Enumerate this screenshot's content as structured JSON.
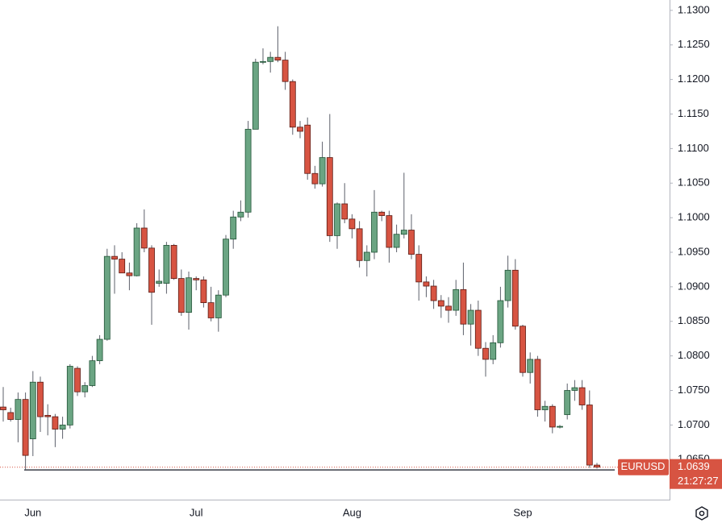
{
  "chart_data": {
    "type": "candlestick",
    "categories": [
      null,
      null,
      null,
      null,
      "Jun",
      null,
      null,
      null,
      null,
      null,
      null,
      null,
      null,
      null,
      null,
      null,
      null,
      null,
      null,
      null,
      null,
      null,
      null,
      null,
      null,
      null,
      "Jul",
      null,
      null,
      null,
      null,
      null,
      null,
      null,
      null,
      null,
      null,
      null,
      null,
      null,
      null,
      null,
      null,
      null,
      null,
      null,
      null,
      "Aug",
      null,
      null,
      null,
      null,
      null,
      null,
      null,
      null,
      null,
      null,
      null,
      null,
      null,
      null,
      null,
      null,
      null,
      null,
      null,
      null,
      null,
      null,
      "Sep",
      null,
      null,
      null,
      null,
      null,
      null,
      null,
      null,
      null,
      null
    ],
    "open": [
      1.0726,
      1.0718,
      1.0708,
      1.0737,
      1.068,
      1.0762,
      1.0714,
      1.0712,
      1.0694,
      1.07,
      1.0782,
      1.0748,
      1.0757,
      1.0793,
      1.0824,
      1.0944,
      1.094,
      1.092,
      1.0916,
      1.0985,
      1.0956,
      1.0905,
      1.0905,
      1.096,
      1.0912,
      1.0863,
      1.0912,
      1.091,
      1.0877,
      1.0855,
      1.0888,
      1.0969,
      1.1001,
      1.1008,
      1.1128,
      1.1225,
      1.1226,
      1.1232,
      1.1228,
      1.1197,
      1.1131,
      1.1134,
      1.1064,
      1.1049,
      1.1087,
      1.0974,
      1.102,
      1.0998,
      1.0984,
      1.0938,
      1.095,
      1.1008,
      1.1003,
      1.0957,
      1.0976,
      1.0982,
      1.0947,
      1.0907,
      1.0901,
      1.088,
      1.0872,
      1.0866,
      1.0896,
      1.0846,
      1.0866,
      1.0811,
      1.0795,
      1.0819,
      1.088,
      1.0924,
      1.0843,
      1.0776,
      1.0795,
      1.0722,
      1.0727,
      1.0697,
      1.0715,
      1.075,
      1.0754,
      1.0729,
      1.0642
    ],
    "high": [
      1.0755,
      1.0725,
      1.0747,
      1.0747,
      1.0778,
      1.077,
      1.073,
      1.0716,
      1.0712,
      1.0788,
      1.0785,
      1.0762,
      1.08,
      1.083,
      1.0955,
      1.096,
      1.095,
      1.0935,
      1.0992,
      1.1012,
      1.096,
      1.0925,
      1.0965,
      1.0962,
      1.0925,
      1.0922,
      1.0915,
      1.0915,
      1.09,
      1.0895,
      1.0975,
      1.101,
      1.1025,
      1.114,
      1.123,
      1.1245,
      1.124,
      1.1277,
      1.124,
      1.12,
      1.114,
      1.1145,
      1.1075,
      1.111,
      1.115,
      1.1022,
      1.105,
      1.1005,
      1.0995,
      1.096,
      1.104,
      1.101,
      1.101,
      1.099,
      1.1065,
      1.1005,
      1.096,
      1.0915,
      1.091,
      1.0888,
      1.0885,
      1.091,
      1.0935,
      1.0875,
      1.088,
      1.082,
      1.083,
      1.09,
      1.0945,
      1.094,
      1.0845,
      1.0805,
      1.08,
      1.0735,
      1.073,
      1.07,
      1.076,
      1.0765,
      1.0765,
      1.075,
      1.0645
    ],
    "low": [
      1.0705,
      1.0705,
      1.0675,
      1.0636,
      1.0655,
      1.069,
      1.0685,
      1.0668,
      1.068,
      1.0695,
      1.0742,
      1.074,
      1.0755,
      1.0788,
      1.0822,
      1.089,
      1.092,
      1.0895,
      1.0915,
      1.095,
      1.0845,
      1.09,
      1.089,
      1.091,
      1.0858,
      1.0838,
      1.0895,
      1.087,
      1.085,
      1.0835,
      1.0885,
      1.0955,
      1.0995,
      1.1,
      1.1128,
      1.1222,
      1.121,
      1.1225,
      1.1185,
      1.112,
      1.1115,
      1.1055,
      1.1042,
      1.1045,
      1.0965,
      1.0955,
      1.0992,
      1.097,
      1.0928,
      1.0915,
      1.094,
      1.0995,
      1.0935,
      1.095,
      1.097,
      1.094,
      1.088,
      1.0885,
      1.0868,
      1.0855,
      1.0848,
      1.0858,
      1.083,
      1.0815,
      1.08,
      1.077,
      1.0788,
      1.0812,
      1.087,
      1.0838,
      1.077,
      1.076,
      1.0712,
      1.0705,
      1.0688,
      1.0695,
      1.0708,
      1.0735,
      1.0722,
      1.0638,
      1.0637
    ],
    "close": [
      1.0722,
      1.0708,
      1.0737,
      1.0656,
      1.0762,
      1.0712,
      1.0712,
      1.0694,
      1.07,
      1.0785,
      1.0748,
      1.0757,
      1.0793,
      1.0824,
      1.0944,
      1.094,
      1.092,
      1.0916,
      1.0985,
      1.0956,
      1.0892,
      1.0908,
      1.096,
      1.0912,
      1.0863,
      1.0913,
      1.091,
      1.0877,
      1.0855,
      1.0888,
      1.0969,
      1.1001,
      1.1008,
      1.1128,
      1.1225,
      1.1226,
      1.1232,
      1.1228,
      1.1197,
      1.1131,
      1.1125,
      1.1064,
      1.1049,
      1.1087,
      1.0974,
      1.102,
      1.0998,
      1.0984,
      1.0938,
      1.095,
      1.1008,
      1.1003,
      1.0957,
      1.0976,
      1.0982,
      1.0947,
      1.0907,
      1.0901,
      1.088,
      1.0872,
      1.0866,
      1.0896,
      1.0846,
      1.0866,
      1.0811,
      1.0795,
      1.0819,
      1.088,
      1.0924,
      1.0843,
      1.0776,
      1.0795,
      1.0722,
      1.0727,
      1.0697,
      1.0698,
      1.075,
      1.0754,
      1.0729,
      1.0642,
      1.0639
    ],
    "up_color": "#6ba583",
    "down_color": "#d75442",
    "ylim": [
      1.0592,
      1.1315
    ],
    "yticks": [
      {
        "value": 1.065,
        "label": "1.0650"
      },
      {
        "value": 1.07,
        "label": "1.0700"
      },
      {
        "value": 1.075,
        "label": "1.0750"
      },
      {
        "value": 1.08,
        "label": "1.0800"
      },
      {
        "value": 1.085,
        "label": "1.0850"
      },
      {
        "value": 1.09,
        "label": "1.0900"
      },
      {
        "value": 1.095,
        "label": "1.0950"
      },
      {
        "value": 1.1,
        "label": "1.1000"
      },
      {
        "value": 1.105,
        "label": "1.1050"
      },
      {
        "value": 1.11,
        "label": "1.1100"
      },
      {
        "value": 1.115,
        "label": "1.1150"
      },
      {
        "value": 1.12,
        "label": "1.1200"
      },
      {
        "value": 1.125,
        "label": "1.1250"
      },
      {
        "value": 1.13,
        "label": "1.1300"
      }
    ],
    "symbol": "EURUSD",
    "last_price": 1.0639,
    "countdown": "21:27:27",
    "line_level": 1.0635
  }
}
